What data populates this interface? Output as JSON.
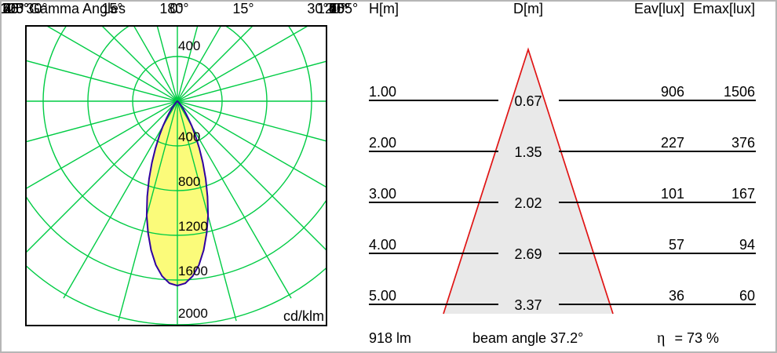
{
  "polar": {
    "title": "Gamma Angles",
    "unit": "cd/klm",
    "top_labels": [
      "120°",
      "180°",
      "120°"
    ],
    "left_labels": [
      "105°",
      "90°",
      "75°",
      "60°",
      "45°"
    ],
    "right_labels": [
      "105°",
      "90°",
      "75°",
      "60°",
      "45°"
    ],
    "bottom_labels": [
      "30°",
      "15°",
      "0°",
      "15°",
      "30°"
    ]
  },
  "chart_data": [
    {
      "type": "line",
      "variant": "polar-photometric-intensity-curve",
      "title": "Gamma Angles",
      "unit": "cd/klm",
      "ring_values": [
        400,
        800,
        1200,
        1600,
        2000
      ],
      "ring_max": 2000,
      "angle_grid_step_deg": 15,
      "gamma_axis_labels_deg": {
        "top": [
          120,
          180,
          120
        ],
        "sides": [
          105,
          90,
          75,
          60,
          45
        ],
        "bottom": [
          30,
          15,
          0,
          15,
          30
        ]
      },
      "peak_intensity_cd_klm": 1650,
      "beam_angle_deg": 37.2,
      "symmetric": true,
      "curve_points_gamma_deg_vs_cd_klm": [
        [
          0,
          1650
        ],
        [
          2.5,
          1630
        ],
        [
          5,
          1571
        ],
        [
          7.5,
          1477
        ],
        [
          10,
          1353
        ],
        [
          12.5,
          1209
        ],
        [
          15,
          1059
        ],
        [
          17.5,
          895
        ],
        [
          20,
          740
        ],
        [
          22.5,
          594
        ],
        [
          25,
          464
        ],
        [
          27.5,
          351
        ],
        [
          30,
          258
        ],
        [
          32.5,
          183
        ],
        [
          35,
          126
        ],
        [
          37.5,
          85
        ],
        [
          40,
          53
        ],
        [
          45,
          19
        ],
        [
          50,
          6
        ],
        [
          55,
          2
        ],
        [
          60,
          0
        ]
      ]
    },
    {
      "type": "table",
      "columns": [
        "H[m]",
        "D[m]",
        "Eav[lux]",
        "Emax[lux]"
      ],
      "rows": [
        [
          "1.00",
          "0.67",
          "906",
          "1506"
        ],
        [
          "2.00",
          "1.35",
          "227",
          "376"
        ],
        [
          "3.00",
          "2.02",
          "101",
          "167"
        ],
        [
          "4.00",
          "2.69",
          "57",
          "94"
        ],
        [
          "5.00",
          "3.37",
          "36",
          "60"
        ]
      ],
      "footer": {
        "luminous_flux": "918 lm",
        "beam_angle": "beam angle 37.2°",
        "efficiency_symbol": "η",
        "efficiency_value": "= 73 %"
      }
    }
  ],
  "colors": {
    "grid_green": "#00cc44",
    "curve_fill": "#fbfb7a",
    "curve_stroke": "#3000a0",
    "beam_red": "#e01414",
    "beam_fill": "#e9e9e9",
    "box_border": "#000000"
  }
}
